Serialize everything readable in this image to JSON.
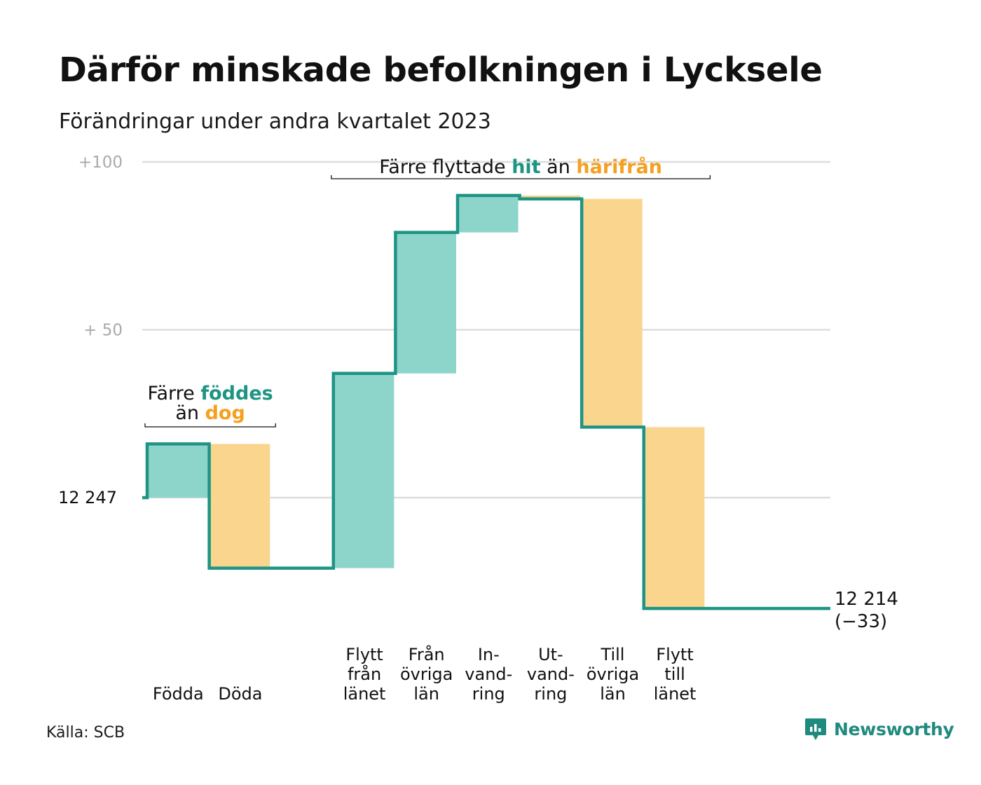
{
  "title": "Därför minskade befolkningen i Lycksele",
  "subtitle": "Förändringar under andra kvartalet 2023",
  "source": "Källa: SCB",
  "brand": "Newsworthy",
  "icons": {
    "brand_logo": "bar-chart-bubble-icon"
  },
  "colors": {
    "increase": "#8dd5cb",
    "decrease": "#fad58e",
    "line": "#1e9484",
    "grid": "#dddddd",
    "accent_orange": "#f5a020"
  },
  "chart_data": {
    "type": "waterfall",
    "start_value": 12247,
    "start_label": "12  247",
    "end_value": 12214,
    "end_label": "12 214",
    "end_change_label": "(−33)",
    "ylim": [
      -32,
      102
    ],
    "y_ticks": [
      {
        "value": 100,
        "label": "+100"
      },
      {
        "value": 50,
        "label": "+  50"
      },
      {
        "value": 0,
        "label": ""
      }
    ],
    "steps": [
      {
        "label_lines": [
          "Födda"
        ],
        "delta": 16,
        "kind": "increase"
      },
      {
        "label_lines": [
          "Döda"
        ],
        "delta": -37,
        "kind": "decrease"
      },
      {
        "label_lines": [
          "",
          "",
          ""
        ],
        "delta": 0,
        "kind": "none"
      },
      {
        "label_lines": [
          "Flytt",
          "från",
          "länet"
        ],
        "delta": 58,
        "kind": "increase"
      },
      {
        "label_lines": [
          "Från",
          "övriga",
          "län"
        ],
        "delta": 42,
        "kind": "increase"
      },
      {
        "label_lines": [
          "In-",
          "vand-",
          "ring"
        ],
        "delta": 11,
        "kind": "increase"
      },
      {
        "label_lines": [
          "Ut-",
          "vand-",
          "ring"
        ],
        "delta": -1,
        "kind": "decrease"
      },
      {
        "label_lines": [
          "Till",
          "övriga",
          "län"
        ],
        "delta": -68,
        "kind": "decrease"
      },
      {
        "label_lines": [
          "Flytt",
          "till",
          "länet"
        ],
        "delta": -54,
        "kind": "decrease"
      }
    ],
    "annotations": [
      {
        "lines": [
          [
            "Färre ",
            "föddes"
          ],
          [
            "än ",
            "dog"
          ]
        ],
        "from_step": 0,
        "to_step": 1
      },
      {
        "lines": [
          [
            "Färre flyttade ",
            "hit",
            " än ",
            "härifrån"
          ]
        ],
        "from_step": 3,
        "to_step": 8
      }
    ]
  }
}
